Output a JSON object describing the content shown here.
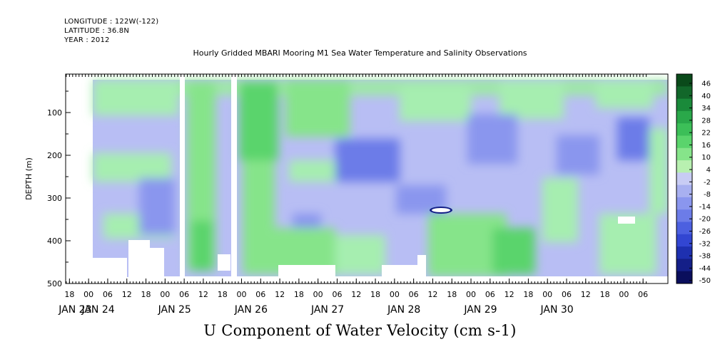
{
  "header": {
    "longitude": "LONGITUDE : 122W(-122)",
    "latitude": "LATITUDE : 36.8N",
    "year": "YEAR : 2012"
  },
  "chart_data": {
    "type": "heatmap",
    "title": "Hourly Gridded MBARI Mooring M1 Sea Water Temperature and Salinity Observations",
    "xlabel": "U Component of Water Velocity (cm s-1)",
    "ylabel": "DEPTH (m)",
    "ylim": [
      500,
      10
    ],
    "yticks": [
      100,
      200,
      300,
      400,
      500
    ],
    "xtick_hours": [
      "18",
      "00",
      "06",
      "12",
      "18",
      "00",
      "06",
      "12",
      "18",
      "00",
      "06",
      "12",
      "18",
      "00",
      "06",
      "12",
      "18",
      "00",
      "06",
      "12",
      "18",
      "00",
      "06",
      "12",
      "18",
      "00",
      "06",
      "12",
      "18",
      "00",
      "06"
    ],
    "xtick_dates": [
      {
        "label": "JAN 23",
        "day": 23
      },
      {
        "label": "JAN 24",
        "day": 24
      },
      {
        "label": "JAN 25",
        "day": 25
      },
      {
        "label": "JAN 26",
        "day": 26
      },
      {
        "label": "JAN 27",
        "day": 27
      },
      {
        "label": "JAN 28",
        "day": 28
      },
      {
        "label": "JAN 29",
        "day": 29
      },
      {
        "label": "JAN 30",
        "day": 30
      }
    ],
    "colorbar": {
      "levels": [
        46,
        40,
        34,
        28,
        22,
        16,
        10,
        4,
        -2,
        -8,
        -14,
        -20,
        -26,
        -32,
        -38,
        -44,
        -50
      ],
      "colors": [
        "#0a4a1a",
        "#12672a",
        "#1a8a3a",
        "#2aa84a",
        "#3cbf58",
        "#5ad46c",
        "#86e48a",
        "#b8f0b0",
        "#c8ccf4",
        "#a8b0f0",
        "#8a96ee",
        "#6c7ce8",
        "#4c60e0",
        "#3246d2",
        "#1e30b0",
        "#141f88",
        "#0a0e5c"
      ]
    },
    "grid": false
  }
}
